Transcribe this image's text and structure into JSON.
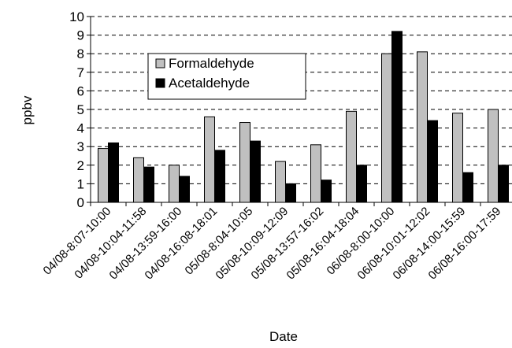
{
  "chart_data": {
    "type": "bar",
    "title": "",
    "xlabel": "Date",
    "ylabel": "ppbv",
    "ylim": [
      0,
      10
    ],
    "yticks": [
      0,
      1,
      2,
      3,
      4,
      5,
      6,
      7,
      8,
      9,
      10
    ],
    "grid": "horizontal dashed",
    "legend_position": "upper-left inside plot",
    "categories": [
      "04/08-8:07-10:00",
      "04/08-10:04-11:58",
      "04/08-13:59-16:00",
      "04/08-16:08-18:01",
      "05/08-8:04-10:05",
      "05/08-10:09-12:09",
      "05/08-13:57-16:02",
      "05/08-16:04-18:04",
      "06/08-8:00-10:00",
      "06/08-10:01-12:02",
      "06/08-14:00-15:59",
      "06/08-16:00-17:59"
    ],
    "series": [
      {
        "name": "Formaldehyde",
        "color": "#c0c0c0",
        "values": [
          2.9,
          2.4,
          2.0,
          4.6,
          4.3,
          2.2,
          3.1,
          4.9,
          8.0,
          8.1,
          4.8,
          5.0
        ]
      },
      {
        "name": "Acetaldehyde",
        "color": "#000000",
        "values": [
          3.2,
          1.9,
          1.4,
          2.8,
          3.3,
          1.0,
          1.2,
          2.0,
          9.2,
          4.4,
          1.6,
          2.0
        ]
      }
    ]
  }
}
